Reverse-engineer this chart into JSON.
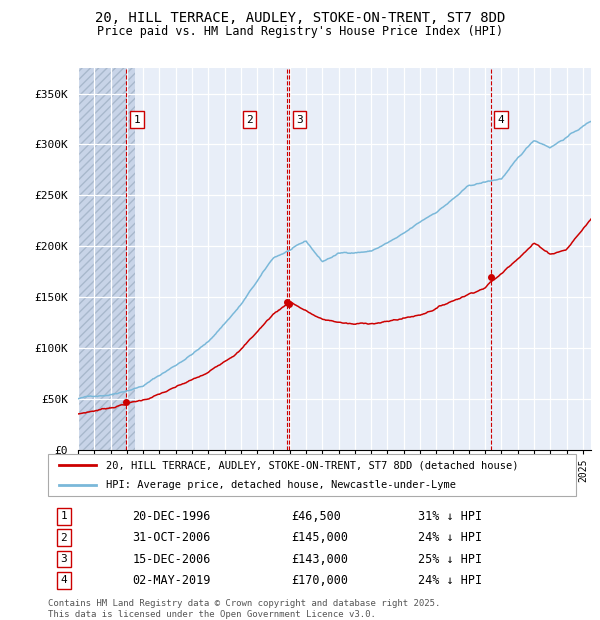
{
  "title": "20, HILL TERRACE, AUDLEY, STOKE-ON-TRENT, ST7 8DD",
  "subtitle": "Price paid vs. HM Land Registry's House Price Index (HPI)",
  "ylim": [
    0,
    375000
  ],
  "yticks": [
    0,
    50000,
    100000,
    150000,
    200000,
    250000,
    300000,
    350000
  ],
  "ytick_labels": [
    "£0",
    "£50K",
    "£100K",
    "£150K",
    "£200K",
    "£250K",
    "£300K",
    "£350K"
  ],
  "hpi_color": "#7ab8d9",
  "price_color": "#cc0000",
  "vline_color": "#cc0000",
  "legend_label_price": "20, HILL TERRACE, AUDLEY, STOKE-ON-TRENT, ST7 8DD (detached house)",
  "legend_label_hpi": "HPI: Average price, detached house, Newcastle-under-Lyme",
  "transactions": [
    {
      "num": 1,
      "date_x": 1996.97,
      "price": 46500
    },
    {
      "num": 2,
      "date_x": 2006.83,
      "price": 145000
    },
    {
      "num": 3,
      "date_x": 2006.96,
      "price": 143000
    },
    {
      "num": 4,
      "date_x": 2019.33,
      "price": 170000
    }
  ],
  "table_rows": [
    {
      "num": "1",
      "date": "20-DEC-1996",
      "price": "£46,500",
      "note": "31% ↓ HPI"
    },
    {
      "num": "2",
      "date": "31-OCT-2006",
      "price": "£145,000",
      "note": "24% ↓ HPI"
    },
    {
      "num": "3",
      "date": "15-DEC-2006",
      "price": "£143,000",
      "note": "25% ↓ HPI"
    },
    {
      "num": "4",
      "date": "02-MAY-2019",
      "price": "£170,000",
      "note": "24% ↓ HPI"
    }
  ],
  "footer": "Contains HM Land Registry data © Crown copyright and database right 2025.\nThis data is licensed under the Open Government Licence v3.0.",
  "xmin": 1994.0,
  "xmax": 2025.5,
  "hatch_xmax": 1997.5
}
